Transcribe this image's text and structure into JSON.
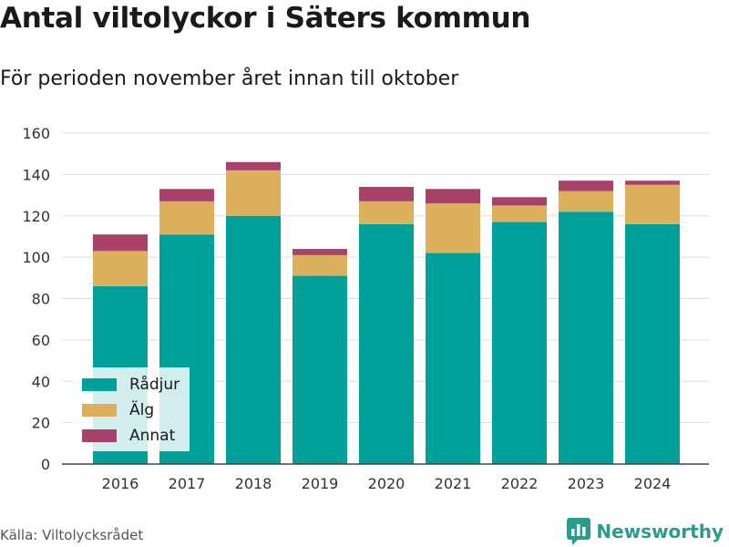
{
  "header": {
    "title": "Antal viltolyckor i Säters kommun",
    "subtitle": "För perioden november året innan till oktober"
  },
  "footer": {
    "source": "Källa: Viltolycksrådet",
    "brand": "Newsworthy"
  },
  "colors": {
    "radjur": "#00a19a",
    "alg": "#dcb05c",
    "annat": "#a8426a",
    "grid": "#dddddd",
    "brand": "#2b9c8b"
  },
  "chart_data": {
    "type": "bar",
    "stacked": true,
    "title": "Antal viltolyckor i Säters kommun",
    "subtitle": "För perioden november året innan till oktober",
    "categories": [
      "2016",
      "2017",
      "2018",
      "2019",
      "2020",
      "2021",
      "2022",
      "2023",
      "2024"
    ],
    "series": [
      {
        "name": "Rådjur",
        "color": "#00a19a",
        "values": [
          86,
          111,
          120,
          91,
          116,
          102,
          117,
          122,
          116
        ]
      },
      {
        "name": "Älg",
        "color": "#dcb05c",
        "values": [
          17,
          16,
          22,
          10,
          11,
          24,
          8,
          10,
          19
        ]
      },
      {
        "name": "Annat",
        "color": "#a8426a",
        "values": [
          8,
          6,
          4,
          3,
          7,
          7,
          4,
          5,
          2
        ]
      }
    ],
    "ylim": [
      0,
      160
    ],
    "yticks": [
      0,
      20,
      40,
      60,
      80,
      100,
      120,
      140,
      160
    ],
    "grid": true,
    "legend": "bottom-left"
  }
}
